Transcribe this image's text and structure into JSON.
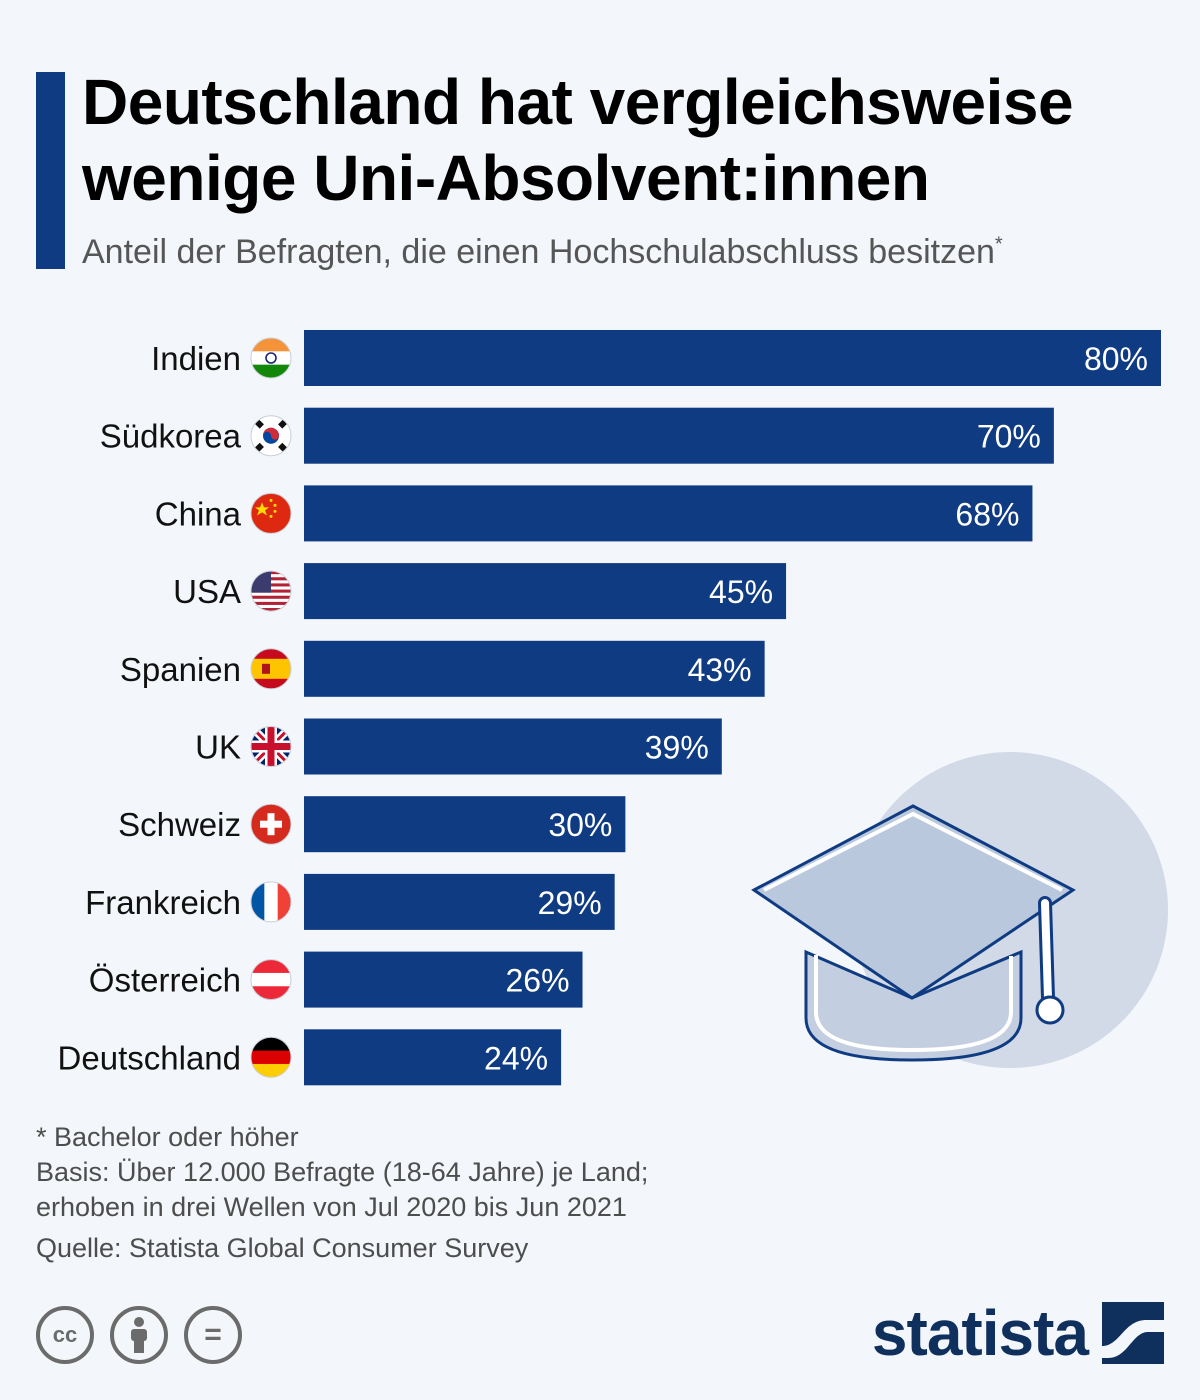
{
  "title": {
    "line1": "Deutschland hat vergleichsweise",
    "line2": "wenige Uni-Absolvent:innen"
  },
  "subtitle": "Anteil der Befragten, die einen Hochschulabschluss besitzen",
  "subtitle_marker": "*",
  "chart_data": {
    "type": "bar",
    "orientation": "horizontal",
    "categories": [
      "Indien",
      "Südkorea",
      "China",
      "USA",
      "Spanien",
      "UK",
      "Schweiz",
      "Frankreich",
      "Österreich",
      "Deutschland"
    ],
    "values": [
      80,
      70,
      68,
      45,
      43,
      39,
      30,
      29,
      26,
      24
    ],
    "value_labels": [
      "80%",
      "70%",
      "68%",
      "45%",
      "43%",
      "39%",
      "30%",
      "29%",
      "26%",
      "24%"
    ],
    "flags": [
      "india-flag-icon",
      "south-korea-flag-icon",
      "china-flag-icon",
      "usa-flag-icon",
      "spain-flag-icon",
      "uk-flag-icon",
      "switzerland-flag-icon",
      "france-flag-icon",
      "austria-flag-icon",
      "germany-flag-icon"
    ],
    "xlim": [
      0,
      80
    ],
    "grid": false,
    "bar_color": "#0f3b82",
    "decoration": "graduation-cap-icon"
  },
  "footnotes": {
    "note": "* Bachelor oder höher",
    "basis_line1": "Basis: Über 12.000 Befragte (18-64 Jahre) je Land;",
    "basis_line2": "erhoben in drei Wellen von Jul 2020 bis Jun 2021",
    "source": "Quelle: Statista Global Consumer Survey"
  },
  "license_icons": [
    "cc-icon",
    "attribution-icon",
    "no-derivatives-icon"
  ],
  "license_labels": [
    "cc",
    "="
  ],
  "brand": {
    "name": "statista",
    "color": "#0f2f5c"
  },
  "colors": {
    "accent": "#0f3b82",
    "background": "#f3f6fa",
    "cap_circle": "#d2dae7",
    "cap_fill": "#b9c8dc"
  }
}
